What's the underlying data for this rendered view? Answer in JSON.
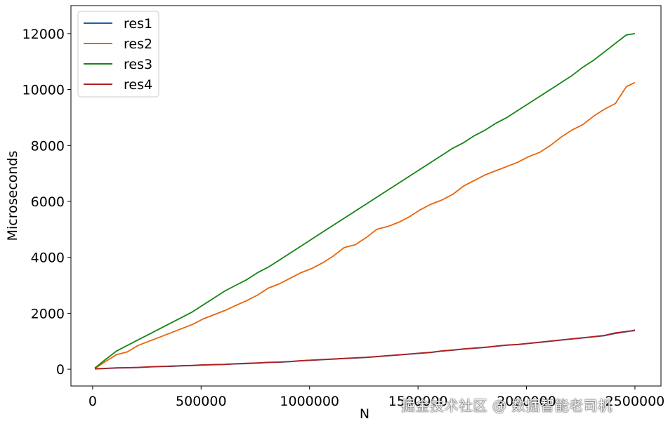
{
  "watermark": "掘金技术社区 @ 数据智能老司机",
  "chart_data": {
    "type": "line",
    "title": "",
    "xlabel": "N",
    "ylabel": "Microseconds",
    "xlim": [
      -100000,
      2620000
    ],
    "ylim": [
      -600,
      13000
    ],
    "xticks": [
      0,
      500000,
      1000000,
      1500000,
      2000000,
      2500000
    ],
    "xtick_labels": [
      "0",
      "500000",
      "1000000",
      "1500000",
      "2000000",
      "2500000"
    ],
    "yticks": [
      0,
      2000,
      4000,
      6000,
      8000,
      10000,
      12000
    ],
    "ytick_labels": [
      "0",
      "2000",
      "4000",
      "6000",
      "8000",
      "10000",
      "12000"
    ],
    "grid": false,
    "legend_position": "top-left",
    "x": [
      10000,
      60000,
      110000,
      160000,
      210000,
      260000,
      310000,
      360000,
      410000,
      460000,
      510000,
      560000,
      610000,
      660000,
      710000,
      760000,
      810000,
      860000,
      910000,
      960000,
      1010000,
      1060000,
      1110000,
      1160000,
      1210000,
      1260000,
      1310000,
      1360000,
      1410000,
      1460000,
      1510000,
      1560000,
      1610000,
      1660000,
      1710000,
      1760000,
      1810000,
      1860000,
      1910000,
      1960000,
      2010000,
      2060000,
      2110000,
      2160000,
      2210000,
      2260000,
      2310000,
      2360000,
      2410000,
      2460000,
      2500000
    ],
    "series": [
      {
        "name": "res1",
        "color": "#1f5fa0",
        "values": [
          10,
          25,
          45,
          50,
          60,
          80,
          95,
          100,
          120,
          130,
          150,
          160,
          170,
          190,
          200,
          220,
          240,
          250,
          270,
          300,
          320,
          340,
          360,
          380,
          400,
          420,
          450,
          480,
          510,
          540,
          570,
          600,
          650,
          680,
          720,
          750,
          780,
          820,
          860,
          880,
          920,
          960,
          1000,
          1040,
          1080,
          1120,
          1160,
          1200,
          1280,
          1340,
          1400
        ]
      },
      {
        "name": "res2",
        "color": "#e8650a",
        "values": [
          20,
          280,
          520,
          620,
          850,
          1000,
          1150,
          1300,
          1450,
          1600,
          1800,
          1950,
          2100,
          2280,
          2450,
          2650,
          2900,
          3050,
          3250,
          3450,
          3600,
          3800,
          4050,
          4350,
          4450,
          4700,
          5000,
          5100,
          5250,
          5450,
          5700,
          5900,
          6050,
          6250,
          6550,
          6750,
          6950,
          7100,
          7250,
          7400,
          7600,
          7750,
          8000,
          8300,
          8550,
          8750,
          9050,
          9300,
          9500,
          10100,
          10250
        ]
      },
      {
        "name": "res3",
        "color": "#158514",
        "values": [
          40,
          350,
          650,
          850,
          1050,
          1250,
          1450,
          1650,
          1850,
          2050,
          2300,
          2550,
          2800,
          3000,
          3200,
          3450,
          3650,
          3900,
          4150,
          4400,
          4650,
          4900,
          5150,
          5400,
          5650,
          5900,
          6150,
          6400,
          6650,
          6900,
          7150,
          7400,
          7650,
          7900,
          8100,
          8350,
          8550,
          8800,
          9000,
          9250,
          9500,
          9750,
          10000,
          10250,
          10500,
          10800,
          11050,
          11350,
          11650,
          11950,
          12000
        ]
      },
      {
        "name": "res4",
        "color": "#b02020",
        "values": [
          15,
          30,
          50,
          55,
          65,
          85,
          100,
          110,
          125,
          135,
          155,
          165,
          175,
          195,
          210,
          225,
          245,
          255,
          275,
          305,
          325,
          345,
          365,
          385,
          405,
          425,
          455,
          485,
          515,
          545,
          575,
          605,
          655,
          685,
          725,
          755,
          785,
          825,
          865,
          885,
          925,
          965,
          1005,
          1045,
          1085,
          1125,
          1165,
          1210,
          1300,
          1350,
          1380
        ]
      }
    ]
  }
}
